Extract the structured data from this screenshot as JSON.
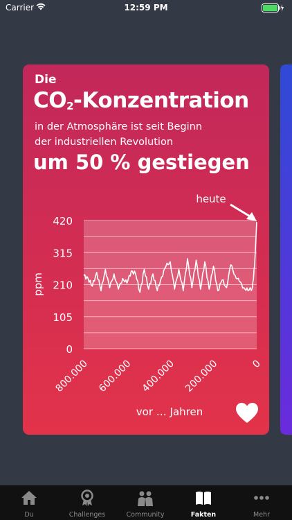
{
  "status": {
    "carrier": "Carrier",
    "time": "12:59 PM"
  },
  "card": {
    "line_die": "Die",
    "co2_main": "CO",
    "co2_sub": "2",
    "co2_rest": "-Konzentration",
    "line_1": "in der Atmosphäre ist seit Beginn",
    "line_2": "der industriellen Revolution",
    "headline": "um 50 % gestiegen",
    "favorite_icon": "heart-icon"
  },
  "chart_data": {
    "type": "line",
    "ylabel": "ppm",
    "xlabel": "vor … Jahren",
    "annotation": "heute",
    "yticks": [
      "420",
      "315",
      "210",
      "105",
      "0"
    ],
    "xticks": [
      "800.000",
      "600.000",
      "400.000",
      "200.000",
      "0"
    ],
    "ylim": [
      0,
      420
    ],
    "xlim": [
      800000,
      0
    ],
    "series": [
      {
        "x": [
          800000,
          780000,
          760000,
          740000,
          720000,
          700000,
          680000,
          660000,
          640000,
          620000,
          600000,
          580000,
          560000,
          540000,
          520000,
          500000,
          480000,
          460000,
          440000,
          420000,
          400000,
          380000,
          360000,
          340000,
          320000,
          300000,
          280000,
          260000,
          240000,
          220000,
          200000,
          180000,
          160000,
          140000,
          120000,
          100000,
          80000,
          60000,
          40000,
          20000,
          10000,
          0
        ],
        "values": [
          240,
          230,
          205,
          250,
          190,
          260,
          200,
          245,
          195,
          230,
          215,
          255,
          245,
          185,
          260,
          195,
          245,
          190,
          235,
          270,
          285,
          195,
          260,
          190,
          295,
          200,
          290,
          195,
          285,
          195,
          270,
          190,
          225,
          200,
          275,
          240,
          220,
          200,
          190,
          200,
          270,
          415
        ]
      }
    ]
  },
  "tabs": [
    {
      "label": "Du",
      "icon": "home-icon"
    },
    {
      "label": "Challenges",
      "icon": "medal-icon"
    },
    {
      "label": "Community",
      "icon": "people-icon"
    },
    {
      "label": "Fakten",
      "icon": "book-icon"
    },
    {
      "label": "Mehr",
      "icon": "more-icon"
    }
  ],
  "colors": {
    "background": "#343a45",
    "card_top": "#c2285a",
    "card_bottom": "#e2334a",
    "tab_active": "#ffffff",
    "tab_inactive": "#8a8a8a"
  }
}
